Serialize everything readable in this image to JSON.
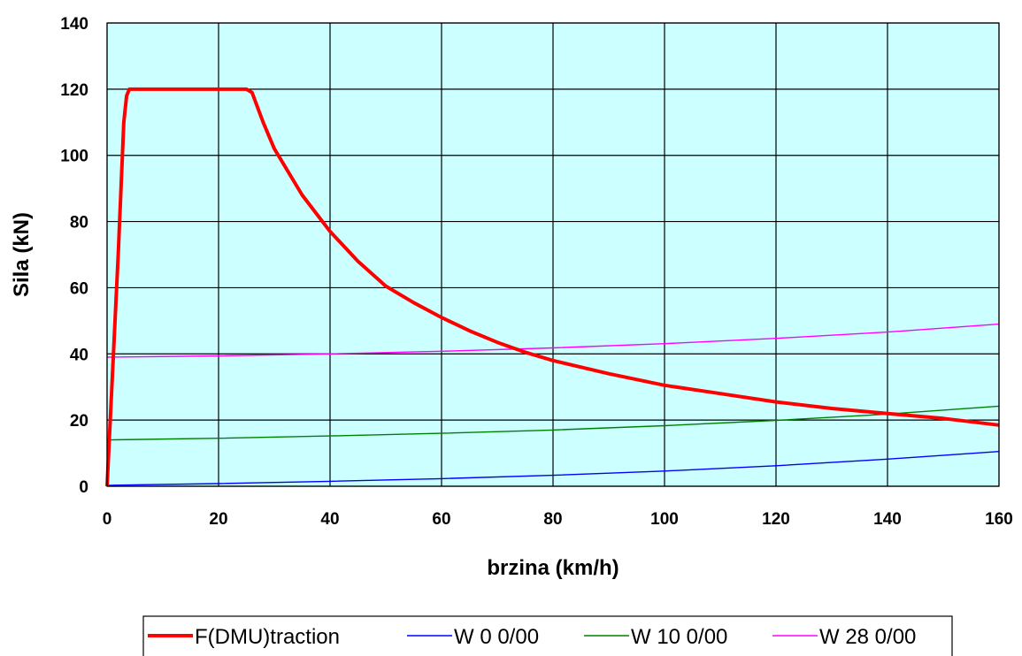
{
  "chart_data": {
    "type": "line",
    "title": "",
    "xlabel": "brzina (km/h)",
    "ylabel": "Sila (kN)",
    "xlim": [
      0,
      160
    ],
    "ylim": [
      0,
      140
    ],
    "xticks": [
      "0",
      "20",
      "40",
      "60",
      "80",
      "100",
      "120",
      "140",
      "160"
    ],
    "yticks": [
      "0",
      "20",
      "40",
      "60",
      "80",
      "100",
      "120",
      "140"
    ],
    "grid": true,
    "plot_background": "#ccffff",
    "legend_position": "bottom",
    "series": [
      {
        "name": "F(DMU)traction",
        "color": "#ff0000",
        "x": [
          0,
          2,
          3,
          3.5,
          4,
          10,
          20,
          25,
          26,
          28,
          30,
          35,
          40,
          45,
          50,
          55,
          60,
          65,
          70,
          75,
          80,
          90,
          100,
          110,
          120,
          130,
          140,
          150,
          160
        ],
        "y": [
          0,
          70,
          110,
          118,
          120,
          120,
          120,
          120,
          119,
          110,
          102,
          88,
          77,
          68,
          60.5,
          55.5,
          51,
          47,
          43.5,
          40.5,
          38,
          34,
          30.5,
          28,
          25.5,
          23.5,
          22,
          20.5,
          18.5
        ]
      },
      {
        "name": "W 0 0/00",
        "color": "#0000ff",
        "x": [
          0,
          20,
          40,
          60,
          80,
          100,
          120,
          140,
          160
        ],
        "y": [
          0.3,
          0.8,
          1.5,
          2.3,
          3.3,
          4.6,
          6.2,
          8.2,
          10.5
        ]
      },
      {
        "name": "W 10 0/00",
        "color": "#008000",
        "x": [
          0,
          20,
          40,
          60,
          80,
          100,
          120,
          140,
          160
        ],
        "y": [
          14,
          14.5,
          15.2,
          16,
          17,
          18.3,
          19.9,
          21.8,
          24.2
        ]
      },
      {
        "name": "W 28 0/00",
        "color": "#ff00ff",
        "x": [
          0,
          20,
          40,
          60,
          80,
          100,
          120,
          140,
          160
        ],
        "y": [
          39,
          39.4,
          40,
          40.8,
          41.8,
          43.1,
          44.7,
          46.6,
          49
        ]
      }
    ]
  }
}
